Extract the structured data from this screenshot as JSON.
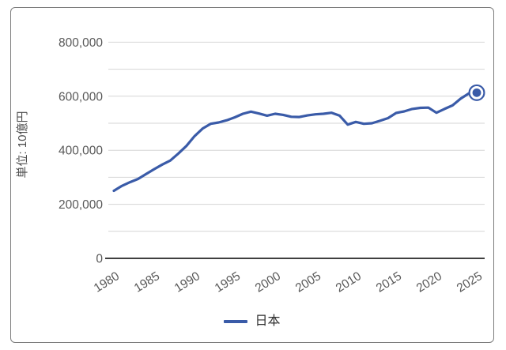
{
  "chart": {
    "unit_label": "単位: 10億円",
    "y_tick_labels": [
      "0",
      "200,000",
      "400,000",
      "600,000",
      "800,000"
    ],
    "x_tick_labels": [
      "1980",
      "1985",
      "1990",
      "1995",
      "2000",
      "2005",
      "2010",
      "2015",
      "2020",
      "2025"
    ],
    "legend": {
      "label": "日本"
    }
  },
  "colors": {
    "line": "#3A5BA8",
    "gridline": "#d6d6d6",
    "axis": "#3f3f3f",
    "tick_text": "#595959",
    "frame_border": "#7d7d7d",
    "background": "#ffffff"
  },
  "chart_data": {
    "type": "line",
    "title": "",
    "xlabel": "",
    "ylabel": "単位: 10億円",
    "x": [
      1980,
      1981,
      1982,
      1983,
      1984,
      1985,
      1986,
      1987,
      1988,
      1989,
      1990,
      1991,
      1992,
      1993,
      1994,
      1995,
      1996,
      1997,
      1998,
      1999,
      2000,
      2001,
      2002,
      2003,
      2004,
      2005,
      2006,
      2007,
      2008,
      2009,
      2010,
      2011,
      2012,
      2013,
      2014,
      2015,
      2016,
      2017,
      2018,
      2019,
      2020,
      2021,
      2022,
      2023,
      2024,
      2025
    ],
    "series": [
      {
        "name": "日本",
        "color": "#3A5BA8",
        "values": [
          250000,
          268000,
          282000,
          294000,
          312000,
          330000,
          347000,
          362000,
          388000,
          416000,
          452000,
          480000,
          498000,
          503000,
          511000,
          522000,
          535000,
          543000,
          536000,
          528000,
          535000,
          531000,
          524000,
          523000,
          529000,
          533000,
          535000,
          539000,
          528000,
          495000,
          505000,
          498000,
          500000,
          509000,
          519000,
          538000,
          544000,
          553000,
          557000,
          558000,
          539000,
          553000,
          566000,
          591000,
          610000,
          613000
        ]
      }
    ],
    "xlim": [
      1980,
      2025
    ],
    "ylim": [
      0,
      800000
    ],
    "y_major_step": 200000,
    "y_minor_step": 100000,
    "grid": true,
    "legend_position": "bottom",
    "last_point_highlighted": true
  }
}
